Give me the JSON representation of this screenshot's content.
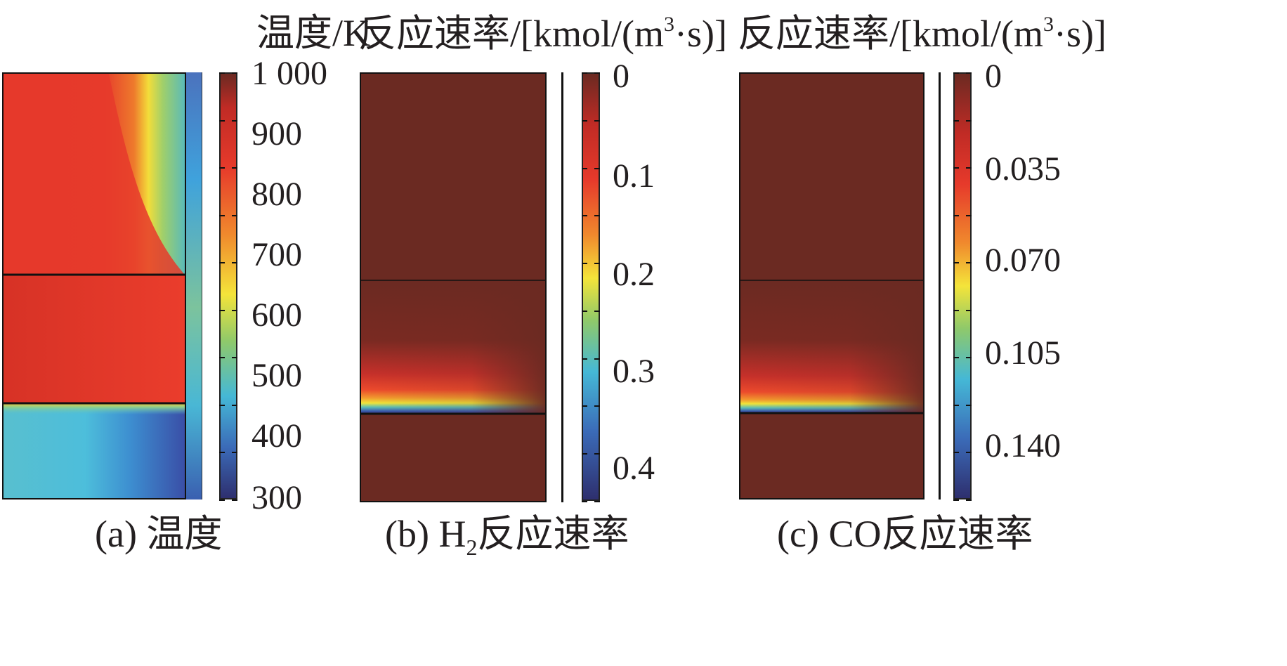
{
  "chart_data": [
    {
      "type": "heatmap",
      "label": "(a)",
      "caption": "温度",
      "colorbar": {
        "title": "温度/K",
        "ticks": [
          "1 000",
          "900",
          "800",
          "700",
          "600",
          "500",
          "400",
          "300"
        ],
        "range": [
          300,
          1000
        ]
      }
    },
    {
      "type": "heatmap",
      "label": "(b)",
      "caption_species_main": "H",
      "caption_species_sub": "2",
      "caption": "反应速率",
      "colorbar": {
        "title_text": "反应速率/[kmol/(m",
        "title_sup": "3",
        "title_end": "·s)]",
        "ticks": [
          "0",
          "0.1",
          "0.2",
          "0.3",
          "0.4"
        ],
        "range": [
          0,
          0.43
        ]
      }
    },
    {
      "type": "heatmap",
      "label": "(c)",
      "caption_species": "CO",
      "caption": "反应速率",
      "colorbar": {
        "title_text": "反应速率/[kmol/(m",
        "title_sup": "3",
        "title_end": "·s)]",
        "ticks": [
          "0",
          "0.035",
          "0.070",
          "0.105",
          "0.140"
        ],
        "range": [
          0,
          0.16
        ]
      }
    }
  ],
  "colors": {
    "dark_red": "#6b2a22",
    "red": "#e63a2b",
    "yellow": "#f2e93b",
    "green": "#7fc27a",
    "cyan": "#45b8d6",
    "blue": "#3b5bb0",
    "navy": "#2e2f6e"
  }
}
